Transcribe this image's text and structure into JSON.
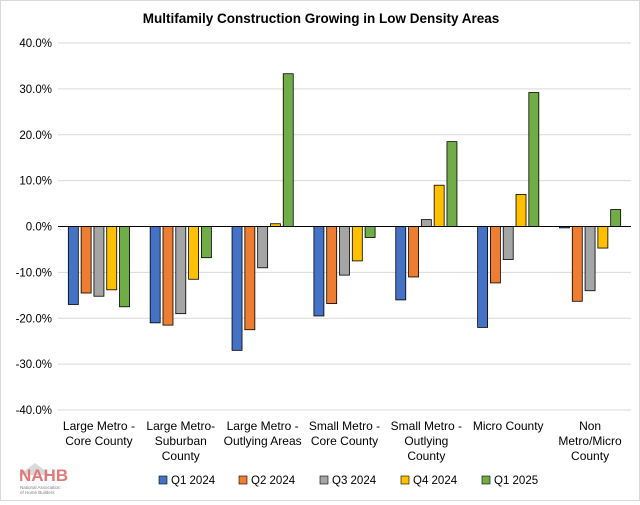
{
  "chart_data": {
    "type": "bar",
    "title": "Multifamily Construction Growing in Low Density Areas",
    "xlabel": "",
    "ylabel": "",
    "ylim": [
      -40,
      40
    ],
    "yticks": [
      "40.0%",
      "30.0%",
      "20.0%",
      "10.0%",
      "0.0%",
      "-10.0%",
      "-20.0%",
      "-30.0%",
      "-40.0%"
    ],
    "ytick_values": [
      40,
      30,
      20,
      10,
      0,
      -10,
      -20,
      -30,
      -40
    ],
    "grid": true,
    "legend_position": "bottom",
    "categories": [
      [
        "Large Metro -",
        "Core County"
      ],
      [
        "Large Metro-",
        "Suburban",
        "County"
      ],
      [
        "Large Metro -",
        "Outlying Areas"
      ],
      [
        "Small Metro -",
        "Core County"
      ],
      [
        "Small Metro -",
        "Outlying",
        "County"
      ],
      [
        "Micro County"
      ],
      [
        "Non",
        "Metro/Micro",
        "County"
      ]
    ],
    "series": [
      {
        "name": "Q1 2024",
        "color": "#4472C4",
        "values": [
          -17.0,
          -21.0,
          -27.0,
          -19.5,
          -16.0,
          -22.0,
          -0.3
        ]
      },
      {
        "name": "Q2 2024",
        "color": "#ED7D31",
        "values": [
          -14.5,
          -21.5,
          -22.5,
          -16.8,
          -11.0,
          -12.3,
          -16.3
        ]
      },
      {
        "name": "Q3 2024",
        "color": "#A5A5A5",
        "values": [
          -15.2,
          -19.0,
          -9.0,
          -10.6,
          1.5,
          -7.2,
          -14.0
        ]
      },
      {
        "name": "Q4 2024",
        "color": "#FFC000",
        "values": [
          -13.8,
          -11.5,
          0.6,
          -7.5,
          9.0,
          7.0,
          -4.7
        ]
      },
      {
        "name": "Q1 2025",
        "color": "#70AD47",
        "values": [
          -17.5,
          -6.8,
          33.3,
          -2.4,
          18.5,
          29.2,
          3.7
        ]
      }
    ]
  },
  "logo": {
    "text": "NAHB",
    "subtitle_lines": [
      "National Association",
      "of Home Builders"
    ]
  }
}
